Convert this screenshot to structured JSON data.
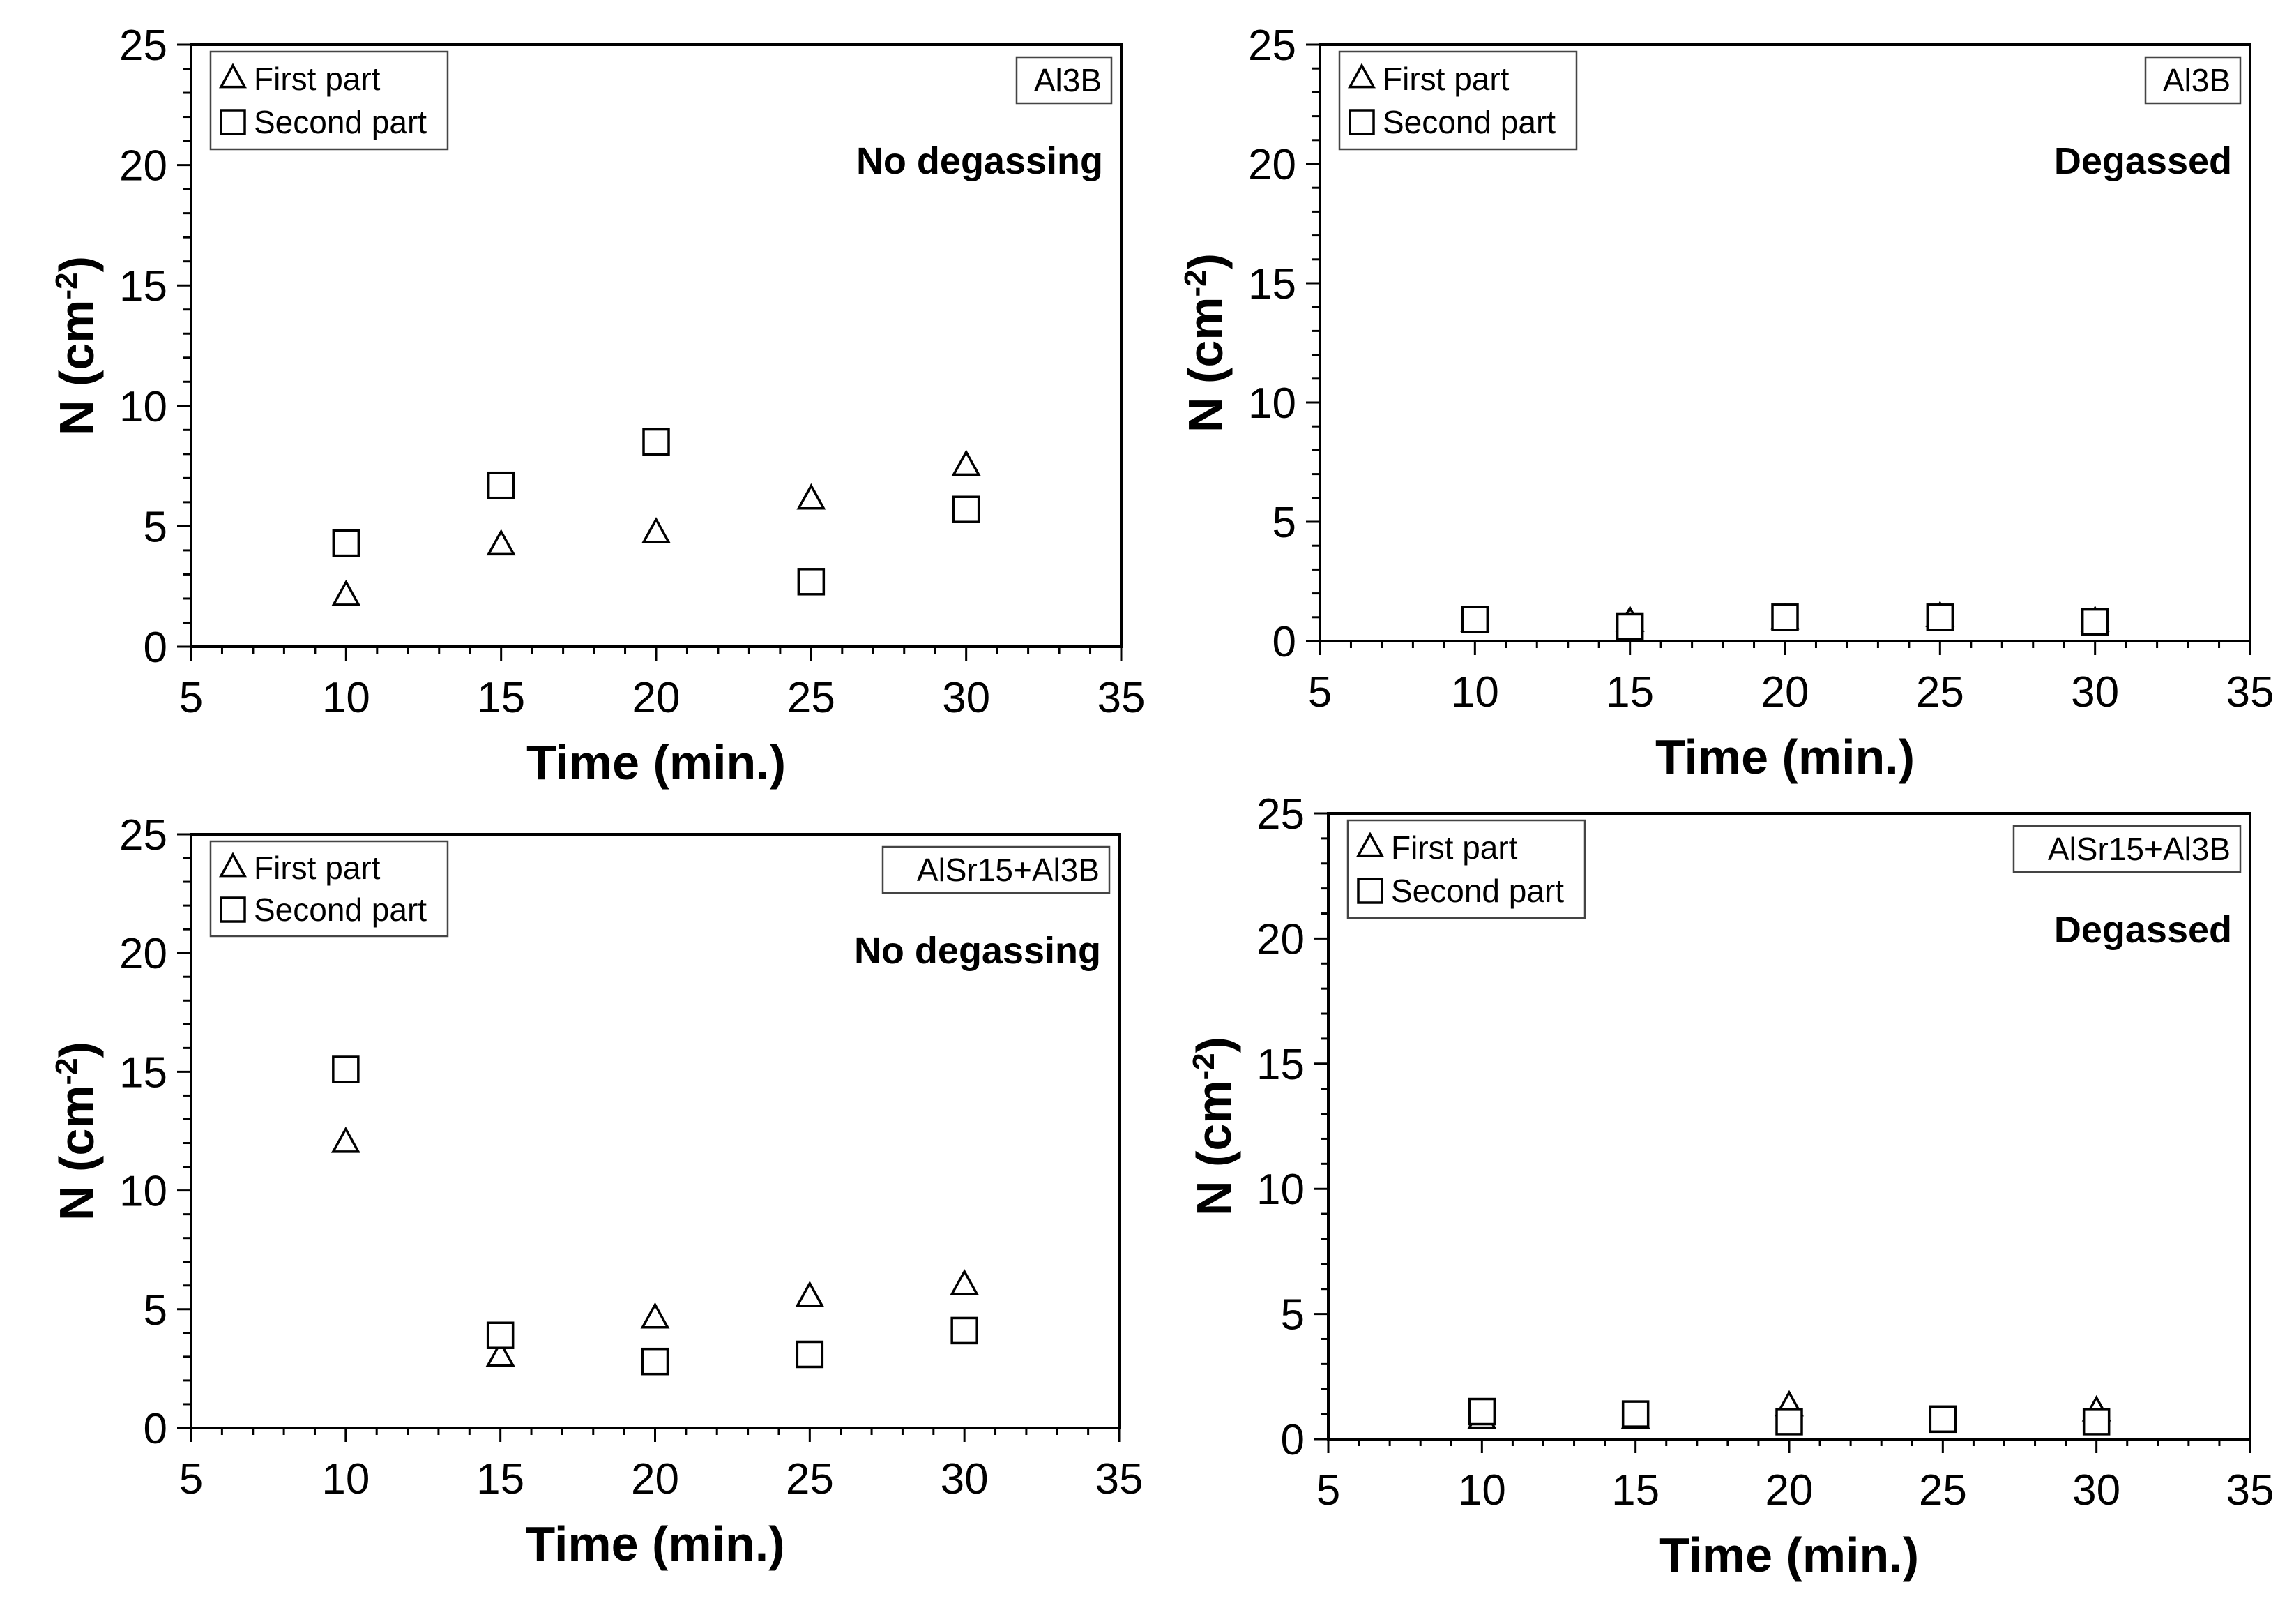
{
  "figure": {
    "colors": {
      "axis": "#000000",
      "marker_stroke": "#000000",
      "marker_fill": "#ffffff",
      "background": "#ffffff"
    }
  },
  "chart_data": [
    {
      "type": "scatter",
      "id": "a",
      "panel_tag": "Al3B",
      "condition": "No degassing",
      "xlabel": "Time (min.)",
      "ylabel": "N (cm-2)",
      "xlim": [
        5,
        35
      ],
      "ylim": [
        0,
        25
      ],
      "xticks": [
        5,
        10,
        15,
        20,
        25,
        30,
        35
      ],
      "yticks": [
        0,
        5,
        10,
        15,
        20,
        25
      ],
      "legend_position": "top-left",
      "series": [
        {
          "name": "First part",
          "marker": "triangle",
          "x": [
            10,
            15,
            20,
            25,
            30
          ],
          "y": [
            2.1,
            4.2,
            4.7,
            6.1,
            7.5
          ]
        },
        {
          "name": "Second part",
          "marker": "square",
          "x": [
            10,
            15,
            20,
            25,
            30
          ],
          "y": [
            4.3,
            6.7,
            8.5,
            2.7,
            5.7
          ]
        }
      ]
    },
    {
      "type": "scatter",
      "id": "b",
      "panel_tag": "Al3B",
      "condition": "Degassed",
      "xlabel": "Time (min.)",
      "ylabel": "N (cm-2)",
      "xlim": [
        5,
        35
      ],
      "ylim": [
        0,
        25
      ],
      "xticks": [
        5,
        10,
        15,
        20,
        25,
        30,
        35
      ],
      "yticks": [
        0,
        5,
        10,
        15,
        20,
        25
      ],
      "legend_position": "top-left",
      "series": [
        {
          "name": "First part",
          "marker": "triangle",
          "x": [
            10,
            15,
            20,
            25,
            30
          ],
          "y": [
            0.8,
            0.8,
            0.9,
            1.0,
            0.8
          ]
        },
        {
          "name": "Second part",
          "marker": "square",
          "x": [
            10,
            15,
            20,
            25,
            30
          ],
          "y": [
            0.9,
            0.6,
            1.0,
            1.0,
            0.8
          ]
        }
      ]
    },
    {
      "type": "scatter",
      "id": "c",
      "panel_tag": "AlSr15+Al3B",
      "condition": "No degassing",
      "xlabel": "Time (min.)",
      "ylabel": "N (cm-2)",
      "xlim": [
        5,
        35
      ],
      "ylim": [
        0,
        25
      ],
      "xticks": [
        5,
        10,
        15,
        20,
        25,
        30,
        35
      ],
      "yticks": [
        0,
        5,
        10,
        15,
        20,
        25
      ],
      "legend_position": "top-left",
      "series": [
        {
          "name": "First part",
          "marker": "triangle",
          "x": [
            10,
            15,
            20,
            25,
            30
          ],
          "y": [
            12.0,
            3.0,
            4.6,
            5.5,
            6.0
          ]
        },
        {
          "name": "Second part",
          "marker": "square",
          "x": [
            10,
            15,
            20,
            25,
            30
          ],
          "y": [
            15.1,
            3.9,
            2.8,
            3.1,
            4.1
          ]
        }
      ]
    },
    {
      "type": "scatter",
      "id": "d",
      "panel_tag": "AlSr15+Al3B",
      "condition": "Degassed",
      "xlabel": "Time (min.)",
      "ylabel": "N (cm-2)",
      "xlim": [
        5,
        35
      ],
      "ylim": [
        0,
        25
      ],
      "xticks": [
        5,
        10,
        15,
        20,
        25,
        30,
        35
      ],
      "yticks": [
        0,
        5,
        10,
        15,
        20,
        25
      ],
      "legend_position": "top-left",
      "series": [
        {
          "name": "First part",
          "marker": "triangle",
          "x": [
            10,
            15,
            20,
            25,
            30
          ],
          "y": [
            0.8,
            0.8,
            1.3,
            0.7,
            1.1
          ]
        },
        {
          "name": "Second part",
          "marker": "square",
          "x": [
            10,
            15,
            20,
            25,
            30
          ],
          "y": [
            1.1,
            1.0,
            0.7,
            0.8,
            0.7
          ]
        }
      ]
    }
  ]
}
